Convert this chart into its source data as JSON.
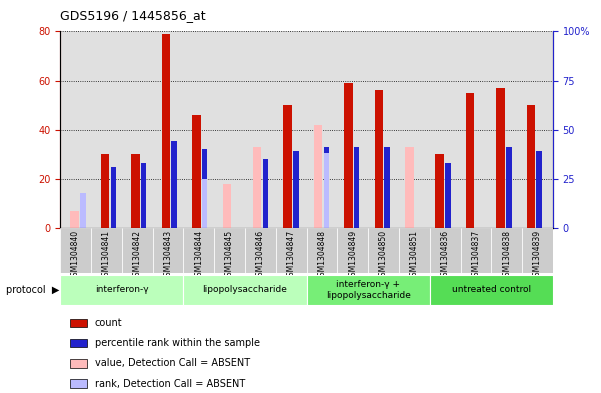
{
  "title": "GDS5196 / 1445856_at",
  "samples": [
    "GSM1304840",
    "GSM1304841",
    "GSM1304842",
    "GSM1304843",
    "GSM1304844",
    "GSM1304845",
    "GSM1304846",
    "GSM1304847",
    "GSM1304848",
    "GSM1304849",
    "GSM1304850",
    "GSM1304851",
    "GSM1304836",
    "GSM1304837",
    "GSM1304838",
    "GSM1304839"
  ],
  "count_values": [
    null,
    30,
    30,
    79,
    46,
    null,
    null,
    50,
    null,
    59,
    56,
    null,
    30,
    55,
    57,
    50
  ],
  "rank_values": [
    null,
    31,
    33,
    44,
    40,
    null,
    35,
    39,
    41,
    41,
    41,
    null,
    33,
    null,
    41,
    39
  ],
  "absent_value_values": [
    7,
    null,
    null,
    null,
    null,
    18,
    33,
    null,
    42,
    null,
    null,
    33,
    null,
    null,
    null,
    null
  ],
  "absent_rank_values": [
    18,
    null,
    null,
    null,
    25,
    null,
    null,
    null,
    38,
    null,
    null,
    null,
    null,
    null,
    null,
    null
  ],
  "groups": [
    {
      "label": "interferon-γ",
      "color": "#bbffbb",
      "start": 0,
      "end": 4
    },
    {
      "label": "lipopolysaccharide",
      "color": "#bbffbb",
      "start": 4,
      "end": 8
    },
    {
      "label": "interferon-γ +\nlipopolysaccharide",
      "color": "#77ee77",
      "start": 8,
      "end": 12
    },
    {
      "label": "untreated control",
      "color": "#55dd55",
      "start": 12,
      "end": 16
    }
  ],
  "ylim_left": [
    0,
    80
  ],
  "ylim_right": [
    0,
    100
  ],
  "yticks_left": [
    0,
    20,
    40,
    60,
    80
  ],
  "yticks_right": [
    0,
    25,
    50,
    75,
    100
  ],
  "bar_color_red": "#cc1100",
  "bar_color_blue": "#2222cc",
  "bar_color_pink": "#ffbbbb",
  "bar_color_lightblue": "#bbbbff",
  "bg_plot": "#e0e0e0",
  "bg_xtick": "#cccccc"
}
